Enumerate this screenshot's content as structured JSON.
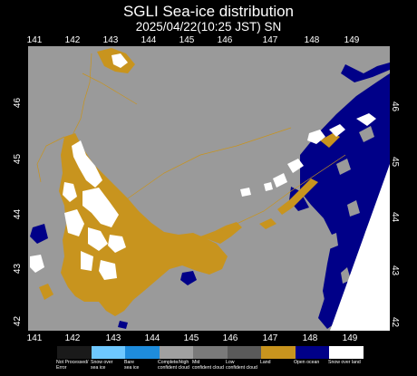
{
  "title": "SGLI Sea-ice distribution",
  "subtitle": "2025/04/22(10:25  JST) SN",
  "lon_ticks": [
    "141",
    "142",
    "143",
    "144",
    "145",
    "146",
    "147",
    "148",
    "149"
  ],
  "lat_ticks": [
    "46",
    "45",
    "44",
    "43",
    "42"
  ],
  "colors": {
    "background": "#000000",
    "no_data": "#9a9a9a",
    "land": "#c8941e",
    "snow_over_land": "#ffffff",
    "open_ocean": "#000088",
    "coastline": "#c8941e"
  },
  "legend": [
    {
      "label": "Not Processed/\nError",
      "color": "#1a1a1a"
    },
    {
      "label": "Snow over\nsea ice",
      "color": "#6ec8ff"
    },
    {
      "label": "Bare\nsea ice",
      "color": "#1e8cdc"
    },
    {
      "label": "Complete/High\nconfident cloud",
      "color": "#a0a0a0"
    },
    {
      "label": "Mid\nconfident cloud",
      "color": "#7a7a7a"
    },
    {
      "label": "Low\nconfident cloud",
      "color": "#5a5a5a"
    },
    {
      "label": "Land",
      "color": "#c8941e"
    },
    {
      "label": "Open ocean",
      "color": "#000088"
    },
    {
      "label": "Snow over land",
      "color": "#ffffff"
    }
  ]
}
